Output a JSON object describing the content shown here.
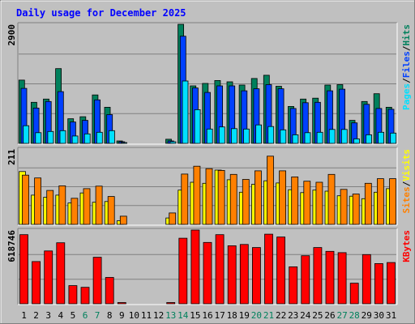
{
  "title": "Daily usage for December 2025",
  "colors": {
    "background": "#c0c0c0",
    "panel_border_dark": "#808080",
    "panel_border_light": "#ffffff",
    "title": "#0000ff",
    "hits": "#00805c",
    "files": "#0040ff",
    "pages": "#00e0ff",
    "visits": "#ffff00",
    "sites": "#ff8000",
    "kbytes": "#ff0000",
    "weekday_label": "#000000",
    "weekend_label": "#00805c"
  },
  "chart_data": [
    {
      "type": "bar",
      "panel": "top",
      "ylabel_max": "2900",
      "ylim": [
        0,
        2900
      ],
      "side_labels": [
        {
          "text": "Pages",
          "color": "#00e0ff"
        },
        {
          "text": "/",
          "color": "#000000"
        },
        {
          "text": "Files",
          "color": "#0040ff"
        },
        {
          "text": "/",
          "color": "#000000"
        },
        {
          "text": "Hits",
          "color": "#00805c"
        }
      ],
      "categories": [
        "1",
        "2",
        "3",
        "4",
        "5",
        "6",
        "7",
        "8",
        "9",
        "10",
        "11",
        "12",
        "13",
        "14",
        "15",
        "16",
        "17",
        "18",
        "19",
        "20",
        "21",
        "22",
        "23",
        "24",
        "25",
        "26",
        "27",
        "28",
        "29",
        "30",
        "31"
      ],
      "series": [
        {
          "name": "Hits",
          "color": "#00805c",
          "values": [
            1540,
            1000,
            1080,
            1820,
            600,
            650,
            1180,
            880,
            60,
            0,
            0,
            0,
            100,
            2900,
            1400,
            1460,
            1530,
            1500,
            1420,
            1580,
            1660,
            1390,
            900,
            1080,
            1100,
            1420,
            1430,
            560,
            1020,
            1210,
            880
          ]
        },
        {
          "name": "Files",
          "color": "#0040ff",
          "values": [
            1340,
            860,
            1020,
            1260,
            520,
            560,
            1060,
            700,
            40,
            0,
            0,
            0,
            60,
            2610,
            1350,
            1240,
            1400,
            1400,
            1280,
            1330,
            1430,
            1330,
            850,
            990,
            1000,
            1280,
            1320,
            500,
            950,
            850,
            830
          ]
        },
        {
          "name": "Pages",
          "color": "#00e0ff",
          "values": [
            430,
            260,
            290,
            310,
            180,
            230,
            270,
            310,
            20,
            0,
            0,
            0,
            40,
            1520,
            820,
            350,
            400,
            360,
            350,
            450,
            410,
            330,
            210,
            260,
            270,
            340,
            340,
            110,
            210,
            270,
            250
          ]
        }
      ]
    },
    {
      "type": "bar",
      "panel": "middle",
      "ylabel_max": "211",
      "ylim": [
        0,
        211
      ],
      "side_labels": [
        {
          "text": "Sites",
          "color": "#ff8000"
        },
        {
          "text": "/",
          "color": "#000000"
        },
        {
          "text": "Visits",
          "color": "#ffff00"
        }
      ],
      "categories": [
        "1",
        "2",
        "3",
        "4",
        "5",
        "6",
        "7",
        "8",
        "9",
        "10",
        "11",
        "12",
        "13",
        "14",
        "15",
        "16",
        "17",
        "18",
        "19",
        "20",
        "21",
        "22",
        "23",
        "24",
        "25",
        "26",
        "27",
        "28",
        "29",
        "30",
        "31"
      ],
      "series": [
        {
          "name": "Visits",
          "color": "#ffff00",
          "values": [
            148,
            82,
            76,
            82,
            60,
            88,
            62,
            64,
            10,
            0,
            0,
            0,
            18,
            96,
            118,
            115,
            152,
            125,
            90,
            112,
            122,
            116,
            97,
            89,
            96,
            93,
            80,
            79,
            72,
            90,
            100
          ]
        },
        {
          "name": "Sites",
          "color": "#ff8000",
          "values": [
            138,
            130,
            95,
            108,
            73,
            100,
            107,
            78,
            23,
            0,
            0,
            0,
            32,
            141,
            163,
            156,
            151,
            140,
            126,
            150,
            191,
            150,
            133,
            121,
            118,
            140,
            98,
            85,
            115,
            128,
            128
          ]
        }
      ]
    },
    {
      "type": "bar",
      "panel": "bottom",
      "ylabel_max": "618746",
      "ylim": [
        0,
        618746
      ],
      "side_labels": [
        {
          "text": "KBytes",
          "color": "#ff0000"
        }
      ],
      "categories": [
        "1",
        "2",
        "3",
        "4",
        "5",
        "6",
        "7",
        "8",
        "9",
        "10",
        "11",
        "12",
        "13",
        "14",
        "15",
        "16",
        "17",
        "18",
        "19",
        "20",
        "21",
        "22",
        "23",
        "24",
        "25",
        "26",
        "27",
        "28",
        "29",
        "30",
        "31"
      ],
      "series": [
        {
          "name": "KBytes",
          "color": "#ff0000",
          "values": [
            580000,
            354000,
            443000,
            512000,
            152000,
            138000,
            390000,
            221000,
            10000,
            0,
            0,
            0,
            10000,
            550000,
            618746,
            515000,
            580000,
            487000,
            498000,
            472000,
            584000,
            560000,
            310000,
            403000,
            472000,
            440000,
            429000,
            173000,
            413000,
            337000,
            346000
          ]
        }
      ]
    }
  ],
  "x_labels": [
    {
      "text": "1",
      "weekend": false
    },
    {
      "text": "2",
      "weekend": false
    },
    {
      "text": "3",
      "weekend": false
    },
    {
      "text": "4",
      "weekend": false
    },
    {
      "text": "5",
      "weekend": false
    },
    {
      "text": "6",
      "weekend": true
    },
    {
      "text": "7",
      "weekend": true
    },
    {
      "text": "8",
      "weekend": false
    },
    {
      "text": "9",
      "weekend": false
    },
    {
      "text": "10",
      "weekend": false
    },
    {
      "text": "11",
      "weekend": false
    },
    {
      "text": "12",
      "weekend": false
    },
    {
      "text": "13",
      "weekend": true
    },
    {
      "text": "14",
      "weekend": true
    },
    {
      "text": "15",
      "weekend": false
    },
    {
      "text": "16",
      "weekend": false
    },
    {
      "text": "17",
      "weekend": false
    },
    {
      "text": "18",
      "weekend": false
    },
    {
      "text": "19",
      "weekend": false
    },
    {
      "text": "20",
      "weekend": true
    },
    {
      "text": "21",
      "weekend": true
    },
    {
      "text": "22",
      "weekend": false
    },
    {
      "text": "23",
      "weekend": false
    },
    {
      "text": "24",
      "weekend": false
    },
    {
      "text": "25",
      "weekend": false
    },
    {
      "text": "26",
      "weekend": false
    },
    {
      "text": "27",
      "weekend": true
    },
    {
      "text": "28",
      "weekend": true
    },
    {
      "text": "29",
      "weekend": false
    },
    {
      "text": "30",
      "weekend": false
    },
    {
      "text": "31",
      "weekend": false
    }
  ]
}
